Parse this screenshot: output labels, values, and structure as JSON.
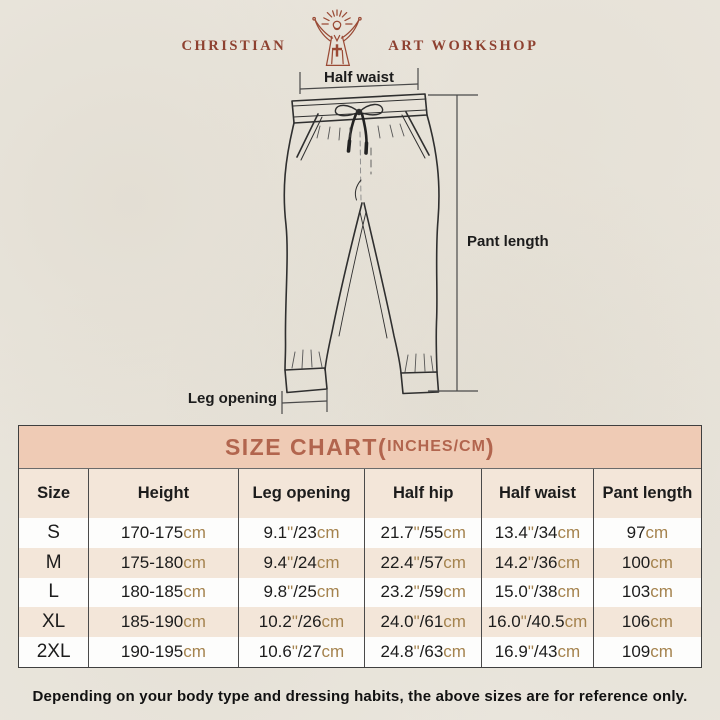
{
  "brand": {
    "name_left": "CHRISTIAN",
    "name_right": "ART WORKSHOP",
    "figure_icon": "jesus-rays-icon"
  },
  "diagram": {
    "labels": {
      "half_waist": "Half waist",
      "pant_length": "Pant length",
      "leg_opening": "Leg opening"
    }
  },
  "size_chart": {
    "title_main": "SIZE CHART(",
    "title_sub": "INCHES/CM",
    "title_close": ")",
    "columns": [
      "Size",
      "Height",
      "Leg opening",
      "Half hip",
      "Half waist",
      "Pant length"
    ],
    "rows": [
      [
        "S",
        "170-175cm",
        "9.1\"/23cm",
        "21.7\"/55cm",
        "13.4\"/34cm",
        "97cm"
      ],
      [
        "M",
        "175-180cm",
        "9.4\"/24cm",
        "22.4\"/57cm",
        "14.2\"/36cm",
        "100cm"
      ],
      [
        "L",
        "180-185cm",
        "9.8\"/25cm",
        "23.2\"/59cm",
        "15.0\"/38cm",
        "103cm"
      ],
      [
        "XL",
        "185-190cm",
        "10.2\"/26cm",
        "24.0\"/61cm",
        "16.0\"/40.5cm",
        "106cm"
      ],
      [
        "2XL",
        "190-195cm",
        "10.6\"/27cm",
        "24.8\"/63cm",
        "16.9\"/43cm",
        "109cm"
      ]
    ]
  },
  "footer": {
    "note": "Depending on your body type and dressing habits, the above sizes are for reference only."
  },
  "colors": {
    "brand_red": "#8e4130",
    "title_red": "#b2654e",
    "title_band_bg": "#efcbb5",
    "stripe_beige": "#f3e6d9",
    "unit_tan": "#a5834e",
    "paper_bg": "#eae6dd",
    "ink": "#1c1c1c",
    "grid_line": "#4a4a4a"
  }
}
